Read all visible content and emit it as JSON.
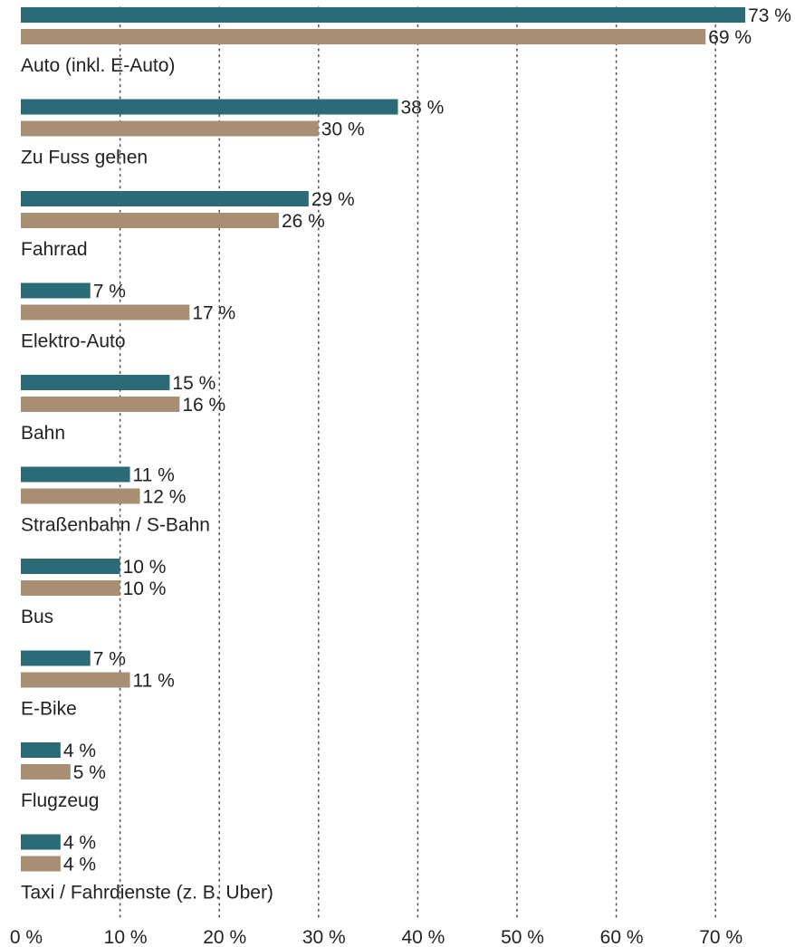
{
  "colors": {
    "series_a": "#2a6b77",
    "series_b": "#a88f73",
    "grid": "#555555",
    "text": "#222222"
  },
  "chart_data": {
    "type": "bar",
    "orientation": "horizontal",
    "categories": [
      "Auto (inkl. E-Auto)",
      "Zu Fuss gehen",
      "Fahrrad",
      "Elektro-Auto",
      "Bahn",
      "Straßenbahn / S-Bahn",
      "Bus",
      "E-Bike",
      "Flugzeug",
      "Taxi / Fahrdienste (z. B. Uber)"
    ],
    "series": [
      {
        "values": [
          73,
          38,
          29,
          7,
          15,
          11,
          10,
          7,
          4,
          4
        ]
      },
      {
        "values": [
          69,
          30,
          26,
          17,
          16,
          12,
          10,
          11,
          5,
          4
        ]
      }
    ],
    "value_labels": {
      "a": [
        "73 %",
        "38 %",
        "29 %",
        "7 %",
        "15 %",
        "11 %",
        "10 %",
        "7 %",
        "4 %",
        "4 %"
      ],
      "b": [
        "69 %",
        "30 %",
        "26 %",
        "17 %",
        "16 %",
        "12 %",
        "10 %",
        "11 %",
        "5 %",
        "4 %"
      ]
    },
    "xlim": [
      0,
      70
    ],
    "xticks": [
      0,
      10,
      20,
      30,
      40,
      50,
      60,
      70
    ],
    "xtick_labels": [
      "0 %",
      "10 %",
      "20 %",
      "30 %",
      "40 %",
      "50 %",
      "60 %",
      "70 %"
    ],
    "grid": "vertical dotted"
  }
}
